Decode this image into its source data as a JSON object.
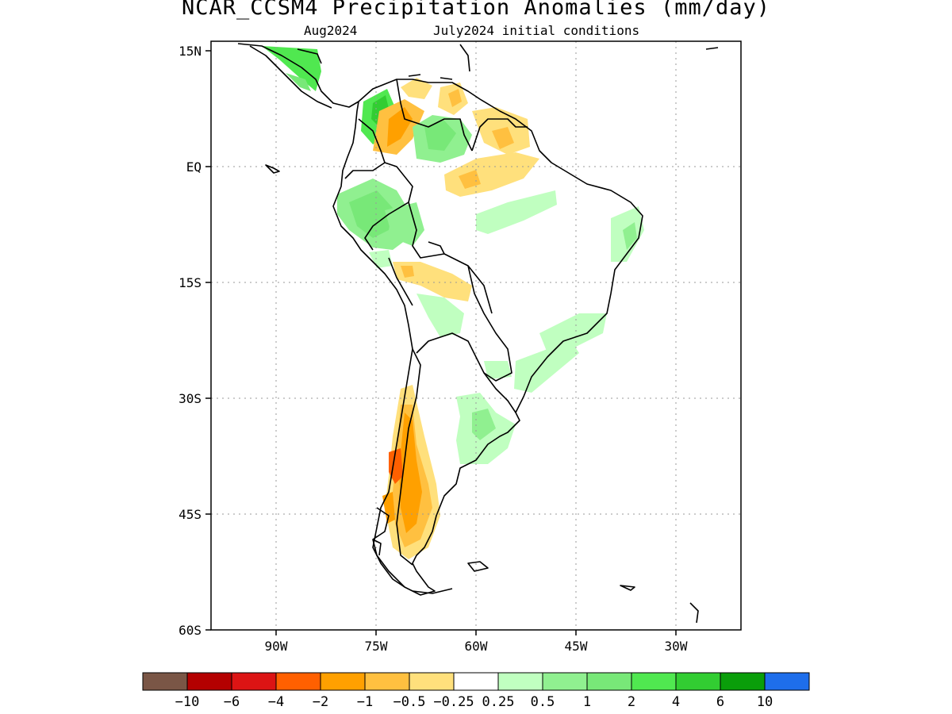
{
  "title": "NCAR_CCSM4 Precipitation Anomalies (mm/day)",
  "subtitle_left": "Aug2024",
  "subtitle_right": "July2024 initial conditions",
  "map": {
    "lat_labels": [
      "15N",
      "EQ",
      "15S",
      "30S",
      "45S",
      "60S"
    ],
    "lon_labels": [
      "90W",
      "75W",
      "60W",
      "45W",
      "30W"
    ],
    "grid": "dotted",
    "colors": {
      "land_outline": "#000000",
      "strong_dry": "#ff6000",
      "dry": "#ffa000",
      "light_dry": "#ffc040",
      "weak_dry": "#ffe07c",
      "weak_wet": "#c0ffc0",
      "light_wet": "#90f090",
      "wet": "#78e878",
      "strong_wet": "#50e850",
      "very_wet": "#32cd32"
    }
  },
  "colorbar": {
    "colors": [
      "#7a5646",
      "#b40000",
      "#dc1414",
      "#ff6000",
      "#ffa000",
      "#ffc040",
      "#ffe07c",
      "#ffffff",
      "#c0ffc0",
      "#90f090",
      "#78e878",
      "#50e850",
      "#32cd32",
      "#0a9e0a",
      "#1e6eeb"
    ],
    "labels": [
      "-10",
      "-6",
      "-4",
      "-2",
      "-1",
      "-0.5",
      "-0.25",
      "0.25",
      "0.5",
      "1",
      "2",
      "4",
      "6",
      "10"
    ]
  }
}
